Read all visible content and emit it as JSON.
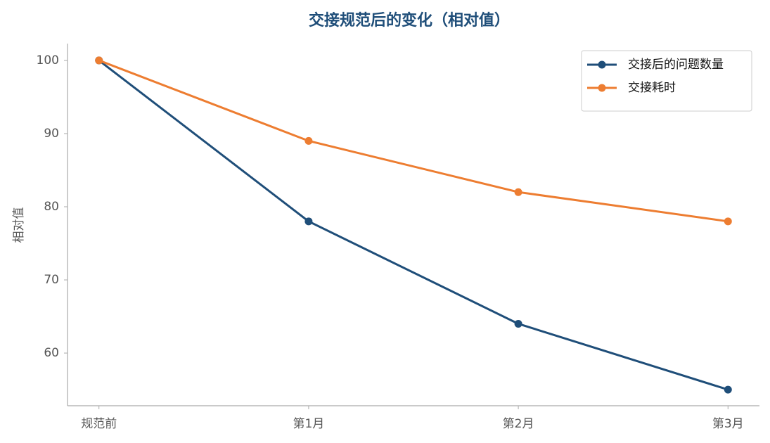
{
  "chart_data": {
    "type": "line",
    "title": "交接规范后的变化（相对值）",
    "y_label": "相对值",
    "categories": [
      "规范前",
      "第1月",
      "第2月",
      "第3月"
    ],
    "series": [
      {
        "name": "交接后的问题数量",
        "color": "#1f4e79",
        "values": [
          100,
          78,
          64,
          55
        ]
      },
      {
        "name": "交接耗时",
        "color": "#ed7d31",
        "values": [
          100,
          89,
          82,
          78
        ]
      }
    ],
    "ylim": [
      52.8,
      102.3
    ],
    "yticks": [
      60,
      70,
      80,
      90,
      100
    ],
    "grid": false,
    "legend": "upper right"
  }
}
